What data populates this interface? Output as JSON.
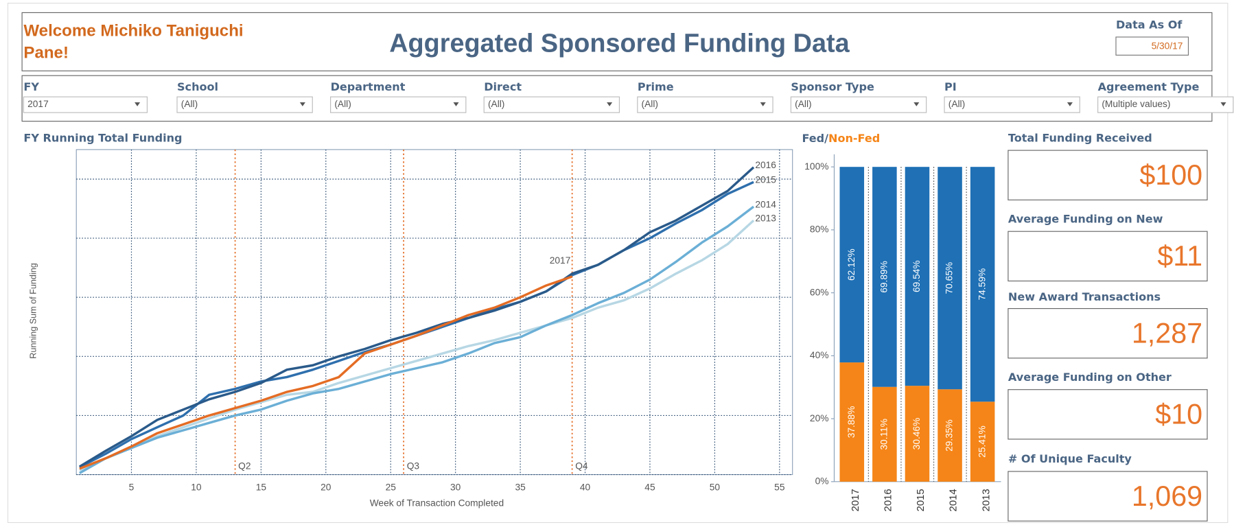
{
  "header": {
    "welcome": [
      "Welcome Michiko Taniguchi",
      "Pane!"
    ],
    "title": "Aggregated Sponsored Funding Data",
    "data_as_of_label": "Data As Of",
    "data_as_of": "5/30/17"
  },
  "filters": [
    {
      "label": "FY",
      "value": "2017"
    },
    {
      "label": "School",
      "value": "(All)"
    },
    {
      "label": "Department",
      "value": "(All)"
    },
    {
      "label": "Direct",
      "value": "(All)"
    },
    {
      "label": "Prime",
      "value": "(All)"
    },
    {
      "label": "Sponsor Type",
      "value": "(All)"
    },
    {
      "label": "PI",
      "value": "(All)"
    },
    {
      "label": "Agreement Type",
      "value": "(Multiple values)"
    }
  ],
  "line_chart": {
    "type": "line",
    "title": "FY Running Total Funding",
    "x_label": "Week of Transaction Completed",
    "y_label": "Running Sum of Funding",
    "x": [
      1,
      3,
      5,
      7,
      9,
      11,
      13,
      15,
      17,
      19,
      21,
      23,
      25,
      27,
      29,
      31,
      33,
      35,
      37,
      39,
      41,
      43,
      45,
      47,
      49,
      51,
      53
    ],
    "xlim": [
      0.75,
      56
    ],
    "xticks": [
      5,
      10,
      15,
      20,
      25,
      30,
      35,
      40,
      45,
      50,
      55
    ],
    "ylim": [
      0,
      110
    ],
    "yticks": [
      0,
      20,
      40,
      60,
      80,
      100
    ],
    "grid": true,
    "quarters": [
      {
        "week": 13,
        "label": "Q2"
      },
      {
        "week": 26,
        "label": "Q3"
      },
      {
        "week": 39,
        "label": "Q4"
      }
    ],
    "series": [
      {
        "name": "2013",
        "color": "#b7d7e4",
        "values": [
          1.5,
          5.5,
          9,
          13,
          16,
          19,
          22,
          24.5,
          27,
          28,
          31,
          33.5,
          36,
          38.5,
          41,
          43.5,
          45.5,
          48,
          50.5,
          53,
          56.5,
          59,
          63,
          68,
          72.5,
          78,
          86
        ]
      },
      {
        "name": "2014",
        "color": "#6bafd6",
        "values": [
          0.5,
          5.5,
          9,
          12.5,
          15,
          17.5,
          20,
          22,
          25,
          27.5,
          29,
          31.5,
          34,
          36,
          38,
          41,
          44.5,
          46.5,
          50.5,
          54,
          58,
          61.5,
          66,
          72,
          78.5,
          84,
          90.7
        ]
      },
      {
        "name": "2015",
        "color": "#2e6fad",
        "values": [
          2.5,
          7,
          12,
          16,
          20,
          27,
          29,
          31.5,
          33,
          35.5,
          38.5,
          41.5,
          44,
          47,
          50,
          53,
          56,
          58.5,
          62,
          67.5,
          71,
          76,
          80,
          85,
          89.5,
          95,
          99
        ]
      },
      {
        "name": "2016",
        "color": "#2a5a8a",
        "values": [
          2.7,
          8,
          13,
          18.5,
          22,
          25.5,
          28,
          31,
          35.5,
          37,
          40,
          42.5,
          45.5,
          48,
          51,
          53,
          55.5,
          58.5,
          62,
          68,
          71,
          76,
          82,
          86,
          91,
          96,
          104
        ]
      },
      {
        "name": "2017",
        "color": "#e46c24",
        "values": [
          2,
          5.5,
          9.5,
          14,
          17,
          20,
          22.5,
          25,
          28,
          30,
          33,
          41,
          44,
          47,
          50.5,
          54,
          56.5,
          60,
          64,
          67,
          null,
          null,
          null,
          null,
          null,
          null,
          null
        ]
      }
    ]
  },
  "bar_chart": {
    "type": "stacked_bar",
    "title_parts": [
      "Fed/",
      "Non-Fed"
    ],
    "categories": [
      "2017",
      "2016",
      "2015",
      "2014",
      "2013"
    ],
    "ylim": [
      0,
      100
    ],
    "yticks": [
      {
        "value": 0,
        "label": "0%"
      },
      {
        "value": 20,
        "label": "20%"
      },
      {
        "value": 40,
        "label": "40%"
      },
      {
        "value": 60,
        "label": "60%"
      },
      {
        "value": 80,
        "label": "80%"
      },
      {
        "value": 100,
        "label": "100%"
      }
    ],
    "series": [
      {
        "color": "#f58518",
        "values": [
          37.88,
          30.11,
          30.46,
          29.35,
          25.41
        ],
        "value_labels": [
          "37.88%",
          "30.11%",
          "30.46%",
          "29.35%",
          "25.41%"
        ]
      },
      {
        "color": "#1f70b5",
        "values": [
          62.12,
          69.89,
          69.54,
          70.65,
          74.59
        ],
        "value_labels": [
          "62.12%",
          "69.89%",
          "69.54%",
          "70.65%",
          "74.59%"
        ]
      }
    ]
  },
  "kpis": [
    {
      "label": "Total Funding Received",
      "value": "$100"
    },
    {
      "label": "Average Funding on New",
      "value": "$11"
    },
    {
      "label": "New Award Transactions",
      "value": "1,287"
    },
    {
      "label": "Average Funding on Other",
      "value": "$10"
    },
    {
      "label": "# Of Unique Faculty",
      "value": "1,069"
    }
  ]
}
